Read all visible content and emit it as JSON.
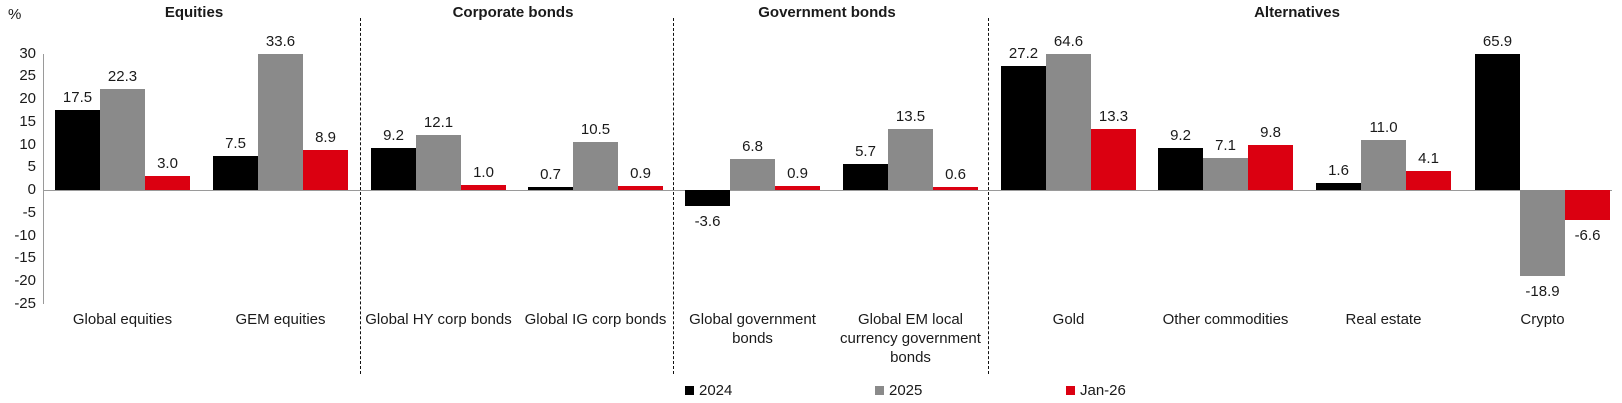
{
  "chart_data": {
    "type": "bar",
    "title": "",
    "ylabel": "%",
    "xlabel": "",
    "ylim": [
      -25,
      30
    ],
    "ytick_step": 5,
    "grid": false,
    "legend_position": "bottom",
    "bars_clipped_at_ymax": true,
    "series": [
      {
        "name": "2024",
        "color": "#000000"
      },
      {
        "name": "2025",
        "color": "#8a8a8a"
      },
      {
        "name": "Jan-26",
        "color": "#db0011"
      }
    ],
    "sections": [
      {
        "title": "Equities",
        "groups": [
          {
            "category": "Global equities",
            "values": [
              17.5,
              22.3,
              3.0
            ],
            "labels": [
              "17.5",
              "22.3",
              "3.0"
            ]
          },
          {
            "category": "GEM equities",
            "values": [
              7.5,
              33.6,
              8.9
            ],
            "labels": [
              "7.5",
              "33.6",
              "8.9"
            ]
          }
        ]
      },
      {
        "title": "Corporate bonds",
        "groups": [
          {
            "category": "Global HY corp bonds",
            "values": [
              9.2,
              12.1,
              1.0
            ],
            "labels": [
              "9.2",
              "12.1",
              "1.0"
            ]
          },
          {
            "category": "Global IG corp bonds",
            "values": [
              0.7,
              10.5,
              0.9
            ],
            "labels": [
              "0.7",
              "10.5",
              "0.9"
            ]
          }
        ]
      },
      {
        "title": "Government bonds",
        "groups": [
          {
            "category": "Global government bonds",
            "values": [
              -3.6,
              6.8,
              0.9
            ],
            "labels": [
              "-3.6",
              "6.8",
              "0.9"
            ]
          },
          {
            "category": "Global EM local currency government bonds",
            "values": [
              5.7,
              13.5,
              0.6
            ],
            "labels": [
              "5.7",
              "13.5",
              "0.6"
            ]
          }
        ]
      },
      {
        "title": "Alternatives",
        "groups": [
          {
            "category": "Gold",
            "values": [
              27.2,
              64.6,
              13.3
            ],
            "labels": [
              "27.2",
              "64.6",
              "13.3"
            ]
          },
          {
            "category": "Other commodities",
            "values": [
              9.2,
              7.1,
              9.8
            ],
            "labels": [
              "9.2",
              "7.1",
              "9.8"
            ]
          },
          {
            "category": "Real estate",
            "values": [
              1.6,
              11.0,
              4.1
            ],
            "labels": [
              "1.6",
              "11.0",
              "4.1"
            ]
          },
          {
            "category": "Crypto",
            "values": [
              65.9,
              -18.9,
              -6.6
            ],
            "labels": [
              "65.9",
              "-18.9",
              "-6.6"
            ]
          }
        ]
      }
    ]
  }
}
